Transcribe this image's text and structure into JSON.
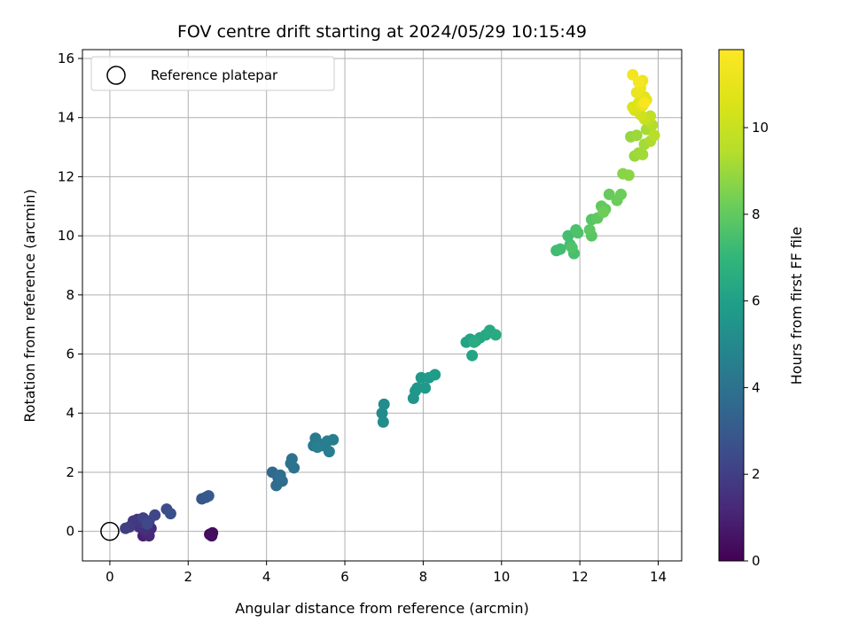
{
  "chart_data": {
    "type": "scatter",
    "title": "FOV centre drift starting at 2024/05/29 10:15:49",
    "xlabel": "Angular distance from reference (arcmin)",
    "ylabel": "Rotation from reference (arcmin)",
    "xlim": [
      -0.7,
      14.6
    ],
    "ylim": [
      -1.0,
      16.3
    ],
    "xticks": [
      0,
      2,
      4,
      6,
      8,
      10,
      12,
      14
    ],
    "yticks": [
      0,
      2,
      4,
      6,
      8,
      10,
      12,
      14,
      16
    ],
    "grid": true,
    "legend": {
      "placement": "top-left",
      "entries": [
        "Reference platepar"
      ]
    },
    "reference_point": {
      "x": 0,
      "y": 0
    },
    "colorbar": {
      "label": "Hours from first FF file",
      "range": [
        0,
        11.8
      ],
      "ticks": [
        0,
        2,
        4,
        6,
        8,
        10
      ],
      "colormap": "viridis"
    },
    "series": [
      {
        "points": [
          {
            "x": 2.55,
            "y": -0.1,
            "c": 0.1
          },
          {
            "x": 2.6,
            "y": -0.15,
            "c": 0.2
          },
          {
            "x": 2.62,
            "y": -0.05,
            "c": 0.3
          },
          {
            "x": 2.58,
            "y": -0.12,
            "c": 0.4
          },
          {
            "x": 0.85,
            "y": -0.15,
            "c": 1.0
          },
          {
            "x": 0.95,
            "y": -0.1,
            "c": 1.1
          },
          {
            "x": 1.0,
            "y": -0.15,
            "c": 1.2
          },
          {
            "x": 1.05,
            "y": 0.1,
            "c": 1.3
          },
          {
            "x": 0.9,
            "y": 0.05,
            "c": 1.4
          },
          {
            "x": 0.75,
            "y": 0.15,
            "c": 1.5
          },
          {
            "x": 0.7,
            "y": 0.4,
            "c": 1.6
          },
          {
            "x": 0.8,
            "y": 0.3,
            "c": 1.7
          },
          {
            "x": 0.6,
            "y": 0.35,
            "c": 1.8
          },
          {
            "x": 0.5,
            "y": 0.15,
            "c": 1.9
          },
          {
            "x": 0.4,
            "y": 0.1,
            "c": 2.0
          },
          {
            "x": 0.85,
            "y": 0.45,
            "c": 2.1
          },
          {
            "x": 1.0,
            "y": 0.35,
            "c": 2.2
          },
          {
            "x": 1.15,
            "y": 0.55,
            "c": 2.3
          },
          {
            "x": 0.95,
            "y": 0.25,
            "c": 2.35
          },
          {
            "x": 1.45,
            "y": 0.75,
            "c": 2.5
          },
          {
            "x": 1.55,
            "y": 0.6,
            "c": 2.6
          },
          {
            "x": 2.35,
            "y": 1.1,
            "c": 2.8
          },
          {
            "x": 2.45,
            "y": 1.15,
            "c": 2.9
          },
          {
            "x": 2.52,
            "y": 1.2,
            "c": 3.0
          },
          {
            "x": 4.15,
            "y": 2.0,
            "c": 3.6
          },
          {
            "x": 4.3,
            "y": 1.8,
            "c": 3.65
          },
          {
            "x": 4.4,
            "y": 1.7,
            "c": 3.7
          },
          {
            "x": 4.25,
            "y": 1.55,
            "c": 3.75
          },
          {
            "x": 4.35,
            "y": 1.9,
            "c": 3.8
          },
          {
            "x": 4.65,
            "y": 2.45,
            "c": 3.95
          },
          {
            "x": 4.7,
            "y": 2.15,
            "c": 4.0
          },
          {
            "x": 4.62,
            "y": 2.3,
            "c": 4.05
          },
          {
            "x": 5.2,
            "y": 2.9,
            "c": 4.3
          },
          {
            "x": 5.25,
            "y": 3.15,
            "c": 4.35
          },
          {
            "x": 5.35,
            "y": 2.95,
            "c": 4.4
          },
          {
            "x": 5.45,
            "y": 2.9,
            "c": 4.45
          },
          {
            "x": 5.55,
            "y": 3.05,
            "c": 4.5
          },
          {
            "x": 5.6,
            "y": 2.7,
            "c": 4.55
          },
          {
            "x": 5.7,
            "y": 3.1,
            "c": 4.6
          },
          {
            "x": 5.3,
            "y": 2.85,
            "c": 4.62
          },
          {
            "x": 6.95,
            "y": 4.0,
            "c": 5.1
          },
          {
            "x": 7.0,
            "y": 4.3,
            "c": 5.15
          },
          {
            "x": 6.98,
            "y": 3.7,
            "c": 5.2
          },
          {
            "x": 7.75,
            "y": 4.5,
            "c": 5.5
          },
          {
            "x": 7.8,
            "y": 4.75,
            "c": 5.55
          },
          {
            "x": 7.85,
            "y": 4.85,
            "c": 5.6
          },
          {
            "x": 7.95,
            "y": 5.2,
            "c": 5.65
          },
          {
            "x": 8.05,
            "y": 4.85,
            "c": 5.7
          },
          {
            "x": 8.15,
            "y": 5.2,
            "c": 5.75
          },
          {
            "x": 8.3,
            "y": 5.3,
            "c": 5.8
          },
          {
            "x": 9.1,
            "y": 6.4,
            "c": 6.1
          },
          {
            "x": 9.2,
            "y": 6.5,
            "c": 6.15
          },
          {
            "x": 9.25,
            "y": 5.95,
            "c": 6.2
          },
          {
            "x": 9.35,
            "y": 6.45,
            "c": 6.25
          },
          {
            "x": 9.45,
            "y": 6.55,
            "c": 6.3
          },
          {
            "x": 9.6,
            "y": 6.65,
            "c": 6.35
          },
          {
            "x": 9.7,
            "y": 6.8,
            "c": 6.4
          },
          {
            "x": 9.85,
            "y": 6.65,
            "c": 6.45
          },
          {
            "x": 9.3,
            "y": 6.4,
            "c": 6.5
          },
          {
            "x": 11.4,
            "y": 9.5,
            "c": 7.3
          },
          {
            "x": 11.5,
            "y": 9.55,
            "c": 7.35
          },
          {
            "x": 11.7,
            "y": 10.0,
            "c": 7.4
          },
          {
            "x": 11.75,
            "y": 9.7,
            "c": 7.45
          },
          {
            "x": 11.85,
            "y": 9.4,
            "c": 7.5
          },
          {
            "x": 11.9,
            "y": 10.2,
            "c": 7.55
          },
          {
            "x": 11.95,
            "y": 10.1,
            "c": 7.6
          },
          {
            "x": 11.8,
            "y": 9.6,
            "c": 7.62
          },
          {
            "x": 12.3,
            "y": 10.55,
            "c": 7.8
          },
          {
            "x": 12.3,
            "y": 10.0,
            "c": 7.85
          },
          {
            "x": 12.25,
            "y": 10.2,
            "c": 7.9
          },
          {
            "x": 12.45,
            "y": 10.6,
            "c": 7.95
          },
          {
            "x": 12.55,
            "y": 11.0,
            "c": 8.0
          },
          {
            "x": 12.65,
            "y": 10.9,
            "c": 8.05
          },
          {
            "x": 12.75,
            "y": 11.4,
            "c": 8.1
          },
          {
            "x": 12.95,
            "y": 11.2,
            "c": 8.15
          },
          {
            "x": 13.05,
            "y": 11.4,
            "c": 8.2
          },
          {
            "x": 12.6,
            "y": 10.8,
            "c": 8.22
          },
          {
            "x": 13.1,
            "y": 12.1,
            "c": 8.7
          },
          {
            "x": 13.25,
            "y": 12.05,
            "c": 8.75
          },
          {
            "x": 13.3,
            "y": 13.35,
            "c": 8.9
          },
          {
            "x": 13.4,
            "y": 12.7,
            "c": 8.95
          },
          {
            "x": 13.45,
            "y": 13.4,
            "c": 9.0
          },
          {
            "x": 13.5,
            "y": 12.8,
            "c": 9.05
          },
          {
            "x": 13.6,
            "y": 12.75,
            "c": 9.1
          },
          {
            "x": 13.65,
            "y": 13.1,
            "c": 9.15
          },
          {
            "x": 13.7,
            "y": 13.6,
            "c": 9.2
          },
          {
            "x": 13.8,
            "y": 13.2,
            "c": 9.3
          },
          {
            "x": 13.85,
            "y": 13.75,
            "c": 9.4
          },
          {
            "x": 13.9,
            "y": 13.4,
            "c": 9.5
          },
          {
            "x": 13.75,
            "y": 13.9,
            "c": 9.6
          },
          {
            "x": 13.8,
            "y": 14.05,
            "c": 9.8
          },
          {
            "x": 13.65,
            "y": 13.95,
            "c": 10.0
          },
          {
            "x": 13.55,
            "y": 14.1,
            "c": 10.2
          },
          {
            "x": 13.4,
            "y": 14.25,
            "c": 10.4
          },
          {
            "x": 13.35,
            "y": 14.35,
            "c": 10.6
          },
          {
            "x": 13.5,
            "y": 14.5,
            "c": 10.7
          },
          {
            "x": 13.65,
            "y": 14.7,
            "c": 10.8
          },
          {
            "x": 13.7,
            "y": 14.6,
            "c": 10.9
          },
          {
            "x": 13.6,
            "y": 14.4,
            "c": 11.0
          },
          {
            "x": 13.45,
            "y": 14.85,
            "c": 11.1
          },
          {
            "x": 13.55,
            "y": 15.0,
            "c": 11.2
          },
          {
            "x": 13.6,
            "y": 15.25,
            "c": 11.3
          },
          {
            "x": 13.35,
            "y": 15.45,
            "c": 11.4
          },
          {
            "x": 13.5,
            "y": 15.2,
            "c": 11.5
          },
          {
            "x": 13.65,
            "y": 14.5,
            "c": 11.6
          }
        ]
      }
    ]
  }
}
